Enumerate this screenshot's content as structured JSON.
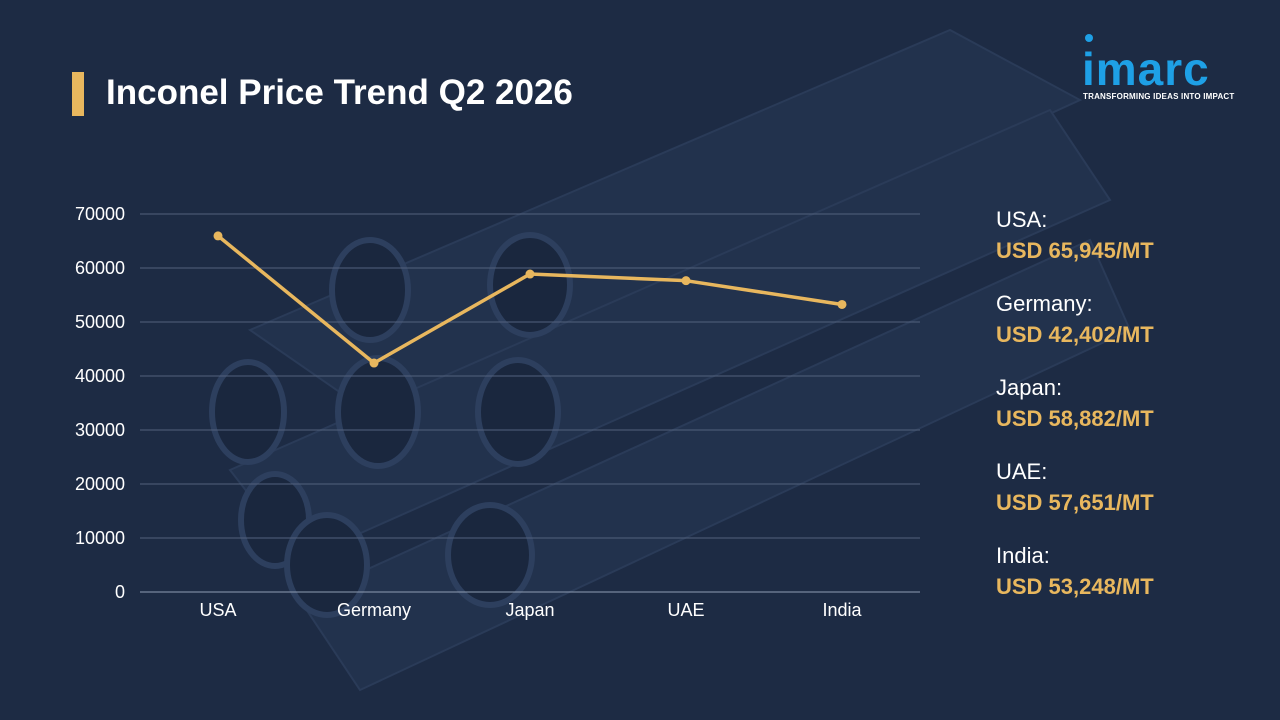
{
  "header": {
    "title": "Inconel Price Trend Q2 2026"
  },
  "logo": {
    "wordmark": "imarc",
    "tagline": "TRANSFORMING IDEAS INTO IMPACT"
  },
  "chart_data": {
    "type": "line",
    "title": "Inconel Price Trend Q2 2026",
    "categories": [
      "USA",
      "Germany",
      "Japan",
      "UAE",
      "India"
    ],
    "series": [
      {
        "values": [
          65945,
          42402,
          58882,
          57651,
          53248
        ]
      }
    ],
    "ylim": [
      0,
      70000
    ],
    "yticks": [
      0,
      10000,
      20000,
      30000,
      40000,
      50000,
      60000,
      70000
    ],
    "grid": true,
    "line_color": "#e8b75e"
  },
  "side_prices": [
    {
      "country": "USA:",
      "price": "USD 65,945/MT"
    },
    {
      "country": "Germany:",
      "price": "USD 42,402/MT"
    },
    {
      "country": "Japan:",
      "price": "USD 58,882/MT"
    },
    {
      "country": "UAE:",
      "price": "USD 57,651/MT"
    },
    {
      "country": "India:",
      "price": "USD 53,248/MT"
    }
  ],
  "colors": {
    "background": "#1d2b44",
    "accent": "#e8b75e",
    "brand": "#1ea0e6"
  }
}
